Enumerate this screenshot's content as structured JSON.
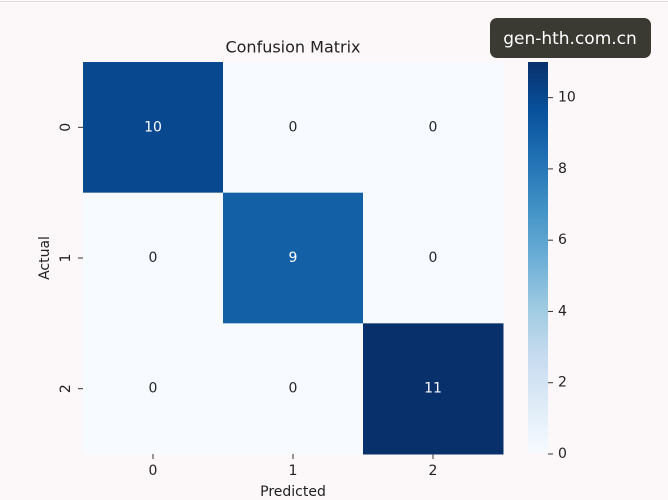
{
  "chart_data": {
    "type": "heatmap",
    "title": "Confusion Matrix",
    "x_label": "Predicted",
    "y_label": "Actual",
    "x_categories": [
      "0",
      "1",
      "2"
    ],
    "y_categories": [
      "0",
      "1",
      "2"
    ],
    "values": [
      [
        10,
        0,
        0
      ],
      [
        0,
        9,
        0
      ],
      [
        0,
        0,
        11
      ]
    ],
    "colormap": "Blues",
    "clim": [
      0,
      11
    ],
    "colorbar_ticks": [
      0,
      2,
      4,
      6,
      8,
      10
    ]
  },
  "watermark": "gen-hth.com.cn"
}
